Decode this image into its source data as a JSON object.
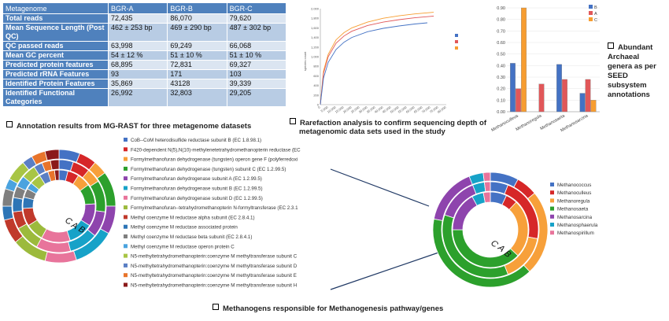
{
  "table": {
    "headers": [
      "Metagenome",
      "BGR-A",
      "BGR-B",
      "BGR-C"
    ],
    "rows": [
      {
        "label": "Total reads",
        "a": "72,435",
        "b": "86,070",
        "c": "79,620"
      },
      {
        "label": "Mean Sequence Length (Post QC)",
        "a": "462 ± 253 bp",
        "b": "469 ± 290 bp",
        "c": "487 ± 302 bp"
      },
      {
        "label": "QC passed reads",
        "a": "63,998",
        "b": "69,249",
        "c": "66,068"
      },
      {
        "label": "Mean GC percent",
        "a": "54 ± 12 %",
        "b": "51 ± 10 %",
        "c": "51 ± 10 %"
      },
      {
        "label": "Predicted protein features",
        "a": "68,895",
        "b": "72,831",
        "c": "69,327"
      },
      {
        "label": "Predicted rRNA Features",
        "a": "93",
        "b": "171",
        "c": "103"
      },
      {
        "label": "Identified Protein Features",
        "a": "35,869",
        "b": "43128",
        "c": "39,339"
      },
      {
        "label": "Identified Functional  Categories",
        "a": "26,992",
        "b": "32,803",
        "c": "29,205"
      }
    ]
  },
  "captions": {
    "table": "Annotation results from MG-RAST for three metagenome datasets",
    "rarefaction_line1": "Rarefaction analysis to confirm sequencing depth of",
    "rarefaction_line2": "metagenomic data sets used in the study",
    "archaea_line1": "Abundant",
    "archaea_line2": "Archaeal",
    "archaea_line3": "genera  as per",
    "archaea_line4": "SEED",
    "archaea_line5": "subsystem",
    "archaea_line6": "annotations",
    "methanogens": "Methanogens responsible for Methanogenesis pathway/genes"
  },
  "colors": {
    "table_header": "#4f81bd",
    "row_light": "#dbe5f1",
    "row_dark": "#b8cce4",
    "series_a": "#4472c4",
    "series_b": "#e15759",
    "series_c": "#f79d30"
  },
  "chart_data": [
    {
      "type": "line",
      "id": "rarefaction",
      "ylabel": "species count",
      "xlim": [
        0,
        80000
      ],
      "ylim": [
        0,
        2000
      ],
      "y_ticks": [
        "2,000",
        "1,800",
        "1,600",
        "1,400",
        "1,200",
        "1,000",
        "800",
        "600",
        "400",
        "200",
        "0"
      ],
      "x_ticks": [
        "0",
        "5,000",
        "10,000",
        "15,000",
        "20,000",
        "25,000",
        "30,000",
        "35,000",
        "40,000",
        "45,000",
        "50,000",
        "55,000",
        "60,000",
        "65,000",
        "70,000",
        "75,000",
        "80,000"
      ],
      "series": [
        {
          "color": "#f79d30",
          "x": [
            0,
            2000,
            5000,
            10000,
            15000,
            20000,
            30000,
            40000,
            50000,
            60000,
            70000,
            72000
          ],
          "y": [
            0,
            700,
            1050,
            1350,
            1500,
            1600,
            1720,
            1800,
            1850,
            1890,
            1920,
            1925
          ]
        },
        {
          "color": "#e15759",
          "x": [
            0,
            2000,
            5000,
            10000,
            15000,
            20000,
            30000,
            40000,
            50000,
            60000,
            70000,
            72000
          ],
          "y": [
            0,
            650,
            1000,
            1280,
            1430,
            1530,
            1650,
            1720,
            1770,
            1810,
            1840,
            1845
          ]
        },
        {
          "color": "#4472c4",
          "x": [
            0,
            2000,
            5000,
            10000,
            15000,
            20000,
            30000,
            40000,
            50000,
            60000,
            68000
          ],
          "y": [
            0,
            550,
            880,
            1150,
            1300,
            1400,
            1520,
            1590,
            1640,
            1680,
            1705
          ]
        }
      ]
    },
    {
      "type": "bar",
      "id": "archaea",
      "ylim": [
        0,
        0.9
      ],
      "y_ticks": [
        "0.90",
        "0.80",
        "0.70",
        "0.60",
        "0.50",
        "0.40",
        "0.30",
        "0.20",
        "0.10",
        "0.00"
      ],
      "categories": [
        "Methanoculleus",
        "Methanoregula",
        "Methanosaeta",
        "Methanosarcina"
      ],
      "series": [
        {
          "name": "B",
          "color": "#4472c4",
          "values": [
            0.42,
            0.0,
            0.41,
            0.16
          ]
        },
        {
          "name": "A",
          "color": "#e15759",
          "values": [
            0.2,
            0.24,
            0.28,
            0.28
          ]
        },
        {
          "name": "C",
          "color": "#f79d30",
          "values": [
            0.9,
            0.0,
            0.0,
            0.1
          ]
        }
      ]
    },
    {
      "type": "pie",
      "id": "genes-donut",
      "ring_labels": [
        "C",
        "A",
        "B"
      ],
      "legend": [
        {
          "label": "CoB--CoM heterodisulfide reductase subunit B (EC 1.8.98.1)",
          "color": "#4472c4"
        },
        {
          "label": "F420-dependent N(5),N(10)-methylenetetrahydromethanopterin reductase (EC",
          "color": "#d62728"
        },
        {
          "label": "Formylmethanofuran dehydrogenase (tungsten) operon gene F (polyferredoxi",
          "color": "#f7a03a"
        },
        {
          "label": "Formylmethanofuran dehydrogenase (tungsten) subunit C (EC 1.2.99.5)",
          "color": "#2ca02c"
        },
        {
          "label": "Formylmethanofuran dehydrogenase subunit A (EC 1.2.99.5)",
          "color": "#8e44ad"
        },
        {
          "label": "Formylmethanofuran dehydrogenase subunit B (EC 1.2.99.5)",
          "color": "#17a2c8"
        },
        {
          "label": "Formylmethanofuran dehydrogenase subunit D (EC 1.2.99.5)",
          "color": "#e8749b"
        },
        {
          "label": "Formylmethanofuran--tetrahydromethanopterin N-formyltransferase (EC 2.3.1",
          "color": "#9cba3c"
        },
        {
          "label": "Methyl coenzyme M reductase alpha subunit (EC 2.8.4.1)",
          "color": "#c0392b"
        },
        {
          "label": "Methyl coenzyme M reductase associated protein",
          "color": "#2e75b6"
        },
        {
          "label": "Methyl coenzyme M reductase beta subunit (EC 2.8.4.1)",
          "color": "#7f7f7f"
        },
        {
          "label": "Methyl coenzyme M reductase operon protein C",
          "color": "#4aa3df"
        },
        {
          "label": "N5-methyltetrahydromethanopterin:coenzyme M methyltransferase subunit C",
          "color": "#a8c545"
        },
        {
          "label": "N5-methyltetrahydromethanopterin:coenzyme M methyltransferase subunit D",
          "color": "#5b7fc4"
        },
        {
          "label": "N5-methyltetrahydromethanopterin:coenzyme M methyltransferase subunit E",
          "color": "#e8742b"
        },
        {
          "label": "N5-methyltetrahydromethanopterin:coenzyme M methyltransferase subunit H",
          "color": "#8b1a1a"
        }
      ],
      "rings": [
        {
          "name": "C",
          "values": [
            6,
            5,
            4,
            10,
            8,
            12,
            9,
            10,
            7,
            4,
            5,
            3,
            6,
            3,
            4,
            4
          ]
        },
        {
          "name": "A",
          "values": [
            5,
            6,
            5,
            11,
            9,
            10,
            12,
            9,
            6,
            5,
            4,
            4,
            5,
            3,
            3,
            3
          ]
        },
        {
          "name": "B",
          "values": [
            4,
            5,
            6,
            9,
            10,
            11,
            13,
            8,
            8,
            5,
            4,
            3,
            5,
            4,
            3,
            2
          ]
        }
      ]
    },
    {
      "type": "pie",
      "id": "genera-donut",
      "ring_labels": [
        "C",
        "A",
        "B"
      ],
      "legend": [
        {
          "label": "Methanococcus",
          "color": "#4472c4"
        },
        {
          "label": "Methanoculleus",
          "color": "#d62728"
        },
        {
          "label": "Methanoregula",
          "color": "#f7a03a"
        },
        {
          "label": "Methanosaeta",
          "color": "#2ca02c"
        },
        {
          "label": "Methanosarcina",
          "color": "#8e44ad"
        },
        {
          "label": "Methanosphaerula",
          "color": "#17a2c8"
        },
        {
          "label": "Methanospirillum",
          "color": "#e8749b"
        }
      ],
      "rings": [
        {
          "name": "C",
          "values": [
            8,
            6,
            24,
            40,
            16,
            4,
            2
          ]
        },
        {
          "name": "A",
          "values": [
            6,
            22,
            16,
            36,
            14,
            4,
            2
          ]
        },
        {
          "name": "B",
          "values": [
            7,
            5,
            25,
            38,
            17,
            5,
            3
          ]
        }
      ]
    }
  ]
}
